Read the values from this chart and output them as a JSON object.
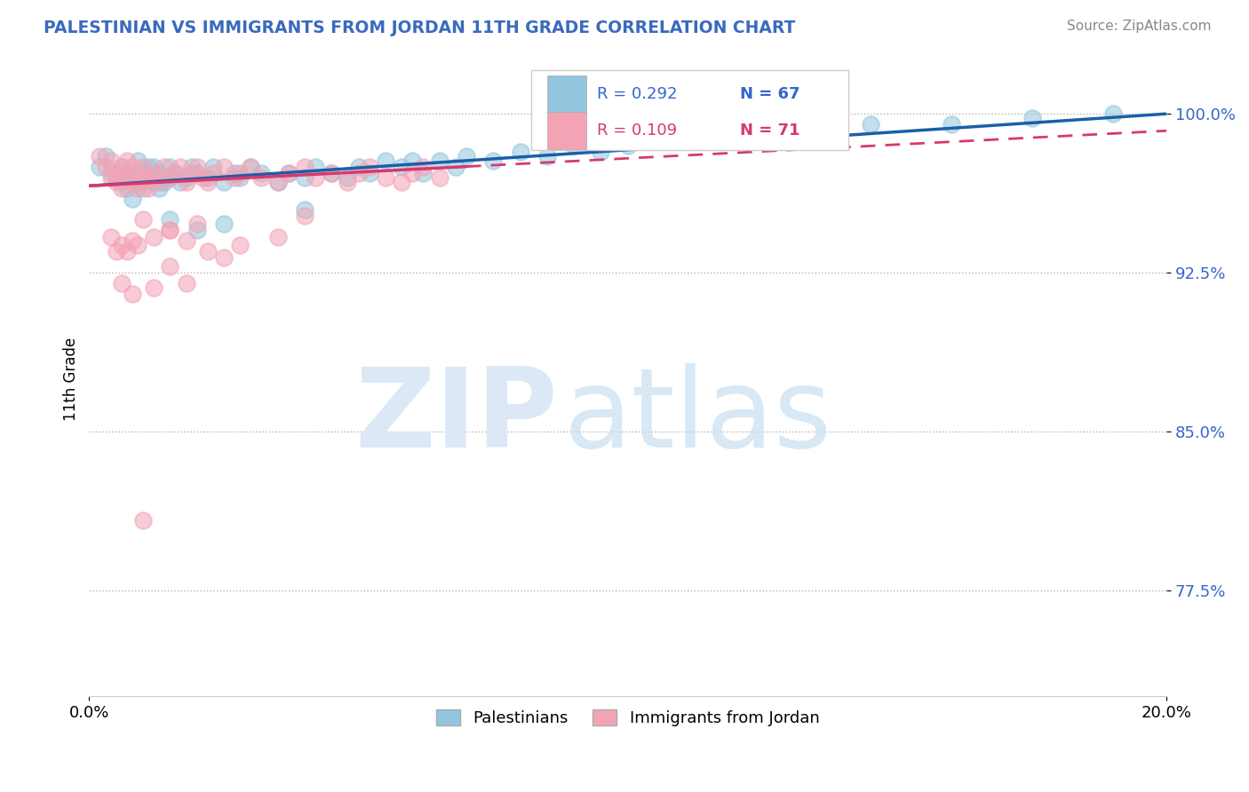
{
  "title": "PALESTINIAN VS IMMIGRANTS FROM JORDAN 11TH GRADE CORRELATION CHART",
  "source": "Source: ZipAtlas.com",
  "ylabel": "11th Grade",
  "xlim": [
    0.0,
    0.2
  ],
  "ylim": [
    0.725,
    1.025
  ],
  "ytick_labels": [
    "77.5%",
    "85.0%",
    "92.5%",
    "100.0%"
  ],
  "ytick_values": [
    0.775,
    0.85,
    0.925,
    1.0
  ],
  "xtick_labels": [
    "0.0%",
    "20.0%"
  ],
  "xtick_values": [
    0.0,
    0.2
  ],
  "r_palestinian": 0.292,
  "n_palestinian": 67,
  "r_jordan": 0.109,
  "n_jordan": 71,
  "color_palestinian": "#92c5de",
  "color_jordan": "#f4a3b5",
  "legend_label_1": "Palestinians",
  "legend_label_2": "Immigrants from Jordan",
  "line_color_pal": "#1a5fa8",
  "line_color_jor": "#d63a6e",
  "palestinian_x": [
    0.002,
    0.003,
    0.004,
    0.005,
    0.006,
    0.006,
    0.007,
    0.007,
    0.008,
    0.008,
    0.009,
    0.009,
    0.01,
    0.01,
    0.011,
    0.011,
    0.012,
    0.012,
    0.013,
    0.013,
    0.014,
    0.015,
    0.015,
    0.016,
    0.017,
    0.018,
    0.019,
    0.02,
    0.022,
    0.023,
    0.025,
    0.027,
    0.028,
    0.03,
    0.032,
    0.035,
    0.037,
    0.04,
    0.042,
    0.045,
    0.048,
    0.05,
    0.052,
    0.055,
    0.058,
    0.06,
    0.062,
    0.065,
    0.068,
    0.07,
    0.075,
    0.08,
    0.085,
    0.09,
    0.095,
    0.1,
    0.11,
    0.12,
    0.13,
    0.145,
    0.16,
    0.175,
    0.19,
    0.04,
    0.015,
    0.02,
    0.025
  ],
  "palestinian_y": [
    0.975,
    0.98,
    0.972,
    0.97,
    0.968,
    0.975,
    0.965,
    0.972,
    0.96,
    0.97,
    0.968,
    0.978,
    0.972,
    0.965,
    0.97,
    0.975,
    0.968,
    0.975,
    0.972,
    0.965,
    0.968,
    0.97,
    0.975,
    0.972,
    0.968,
    0.97,
    0.975,
    0.972,
    0.97,
    0.975,
    0.968,
    0.972,
    0.97,
    0.975,
    0.972,
    0.968,
    0.972,
    0.97,
    0.975,
    0.972,
    0.97,
    0.975,
    0.972,
    0.978,
    0.975,
    0.978,
    0.972,
    0.978,
    0.975,
    0.98,
    0.978,
    0.982,
    0.98,
    0.985,
    0.982,
    0.985,
    0.988,
    0.99,
    0.992,
    0.995,
    0.995,
    0.998,
    1.0,
    0.955,
    0.95,
    0.945,
    0.948
  ],
  "jordan_x": [
    0.002,
    0.003,
    0.004,
    0.004,
    0.005,
    0.005,
    0.006,
    0.006,
    0.007,
    0.007,
    0.008,
    0.008,
    0.009,
    0.009,
    0.01,
    0.01,
    0.011,
    0.011,
    0.012,
    0.013,
    0.014,
    0.015,
    0.016,
    0.017,
    0.018,
    0.019,
    0.02,
    0.021,
    0.022,
    0.023,
    0.025,
    0.027,
    0.028,
    0.03,
    0.032,
    0.035,
    0.037,
    0.04,
    0.042,
    0.045,
    0.048,
    0.05,
    0.052,
    0.055,
    0.058,
    0.06,
    0.062,
    0.065,
    0.04,
    0.02,
    0.015,
    0.01,
    0.008,
    0.006,
    0.005,
    0.004,
    0.007,
    0.009,
    0.012,
    0.015,
    0.018,
    0.022,
    0.028,
    0.035,
    0.018,
    0.012,
    0.008,
    0.006,
    0.01,
    0.015,
    0.025
  ],
  "jordan_y": [
    0.98,
    0.975,
    0.97,
    0.978,
    0.972,
    0.968,
    0.975,
    0.965,
    0.97,
    0.978,
    0.968,
    0.975,
    0.972,
    0.965,
    0.968,
    0.975,
    0.97,
    0.965,
    0.972,
    0.968,
    0.975,
    0.97,
    0.972,
    0.975,
    0.968,
    0.972,
    0.975,
    0.97,
    0.968,
    0.972,
    0.975,
    0.97,
    0.972,
    0.975,
    0.97,
    0.968,
    0.972,
    0.975,
    0.97,
    0.972,
    0.968,
    0.972,
    0.975,
    0.97,
    0.968,
    0.972,
    0.975,
    0.97,
    0.952,
    0.948,
    0.945,
    0.95,
    0.94,
    0.938,
    0.935,
    0.942,
    0.935,
    0.938,
    0.942,
    0.945,
    0.94,
    0.935,
    0.938,
    0.942,
    0.92,
    0.918,
    0.915,
    0.92,
    0.808,
    0.928,
    0.932
  ]
}
